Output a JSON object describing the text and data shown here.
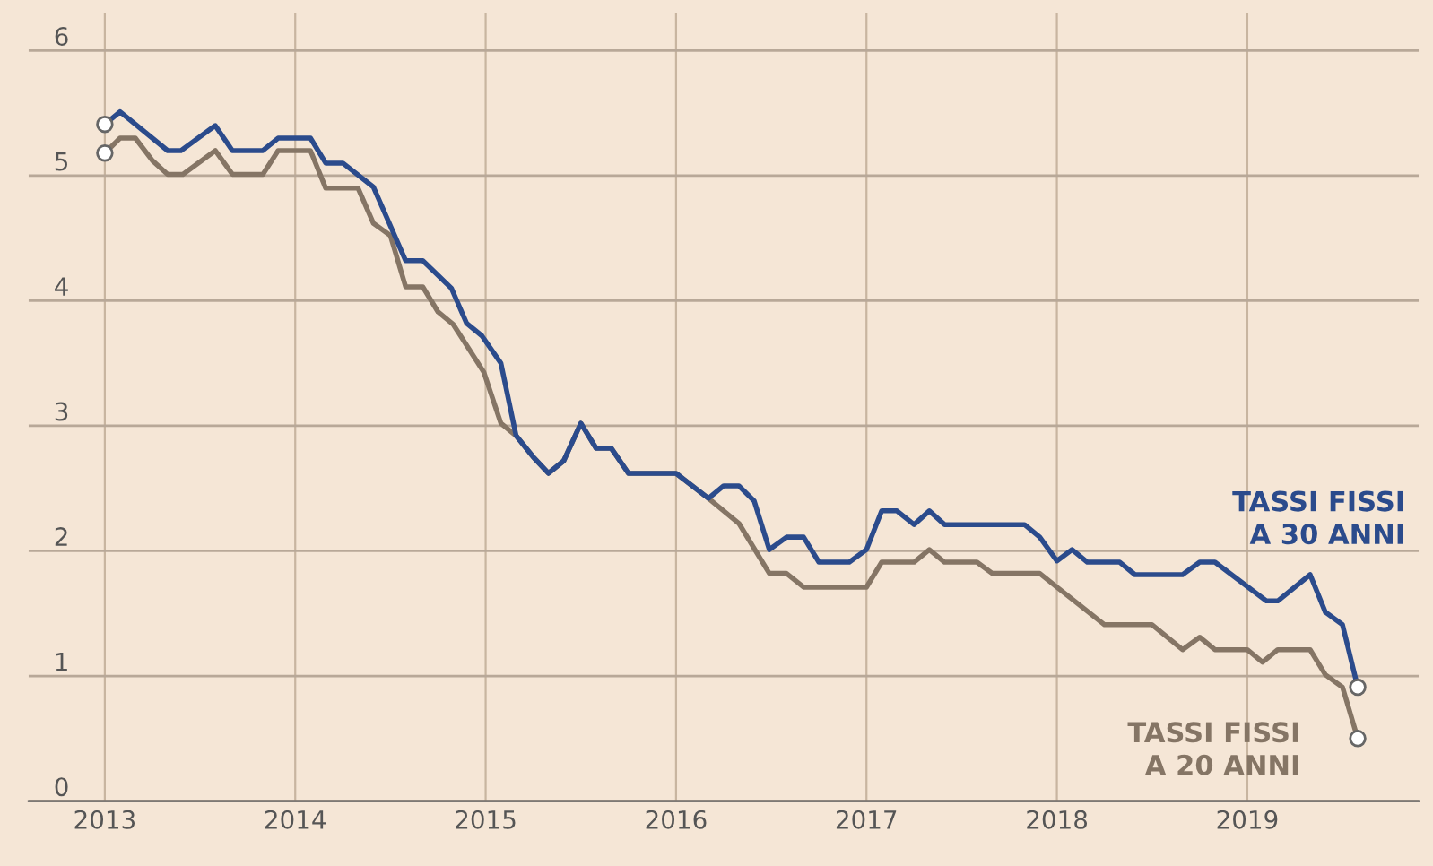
{
  "chart_data": {
    "type": "line",
    "x": [
      2013.0,
      2013.08,
      2013.33,
      2013.4,
      2013.58,
      2013.67,
      2013.83,
      2013.91,
      2014.08,
      2014.16,
      2014.25,
      2014.41,
      2014.58,
      2014.67,
      2014.82,
      2014.9,
      2014.98,
      2015.08,
      2015.16,
      2015.25,
      2015.33,
      2015.41,
      2015.5,
      2015.58,
      2015.66,
      2015.75,
      2016.0,
      2016.17,
      2016.25,
      2016.33,
      2016.41,
      2016.49,
      2016.58,
      2016.67,
      2016.75,
      2016.91,
      2017.0,
      2017.08,
      2017.16,
      2017.25,
      2017.33,
      2017.41,
      2017.83,
      2017.91,
      2018.0,
      2018.08,
      2018.16,
      2018.33,
      2018.41,
      2018.66,
      2018.75,
      2018.83,
      2019.1,
      2019.16,
      2019.33,
      2019.41,
      2019.5,
      2019.58
    ],
    "series": [
      {
        "name": "TASSI FISSI\nA 30 ANNI",
        "color": "#2b4b8c",
        "values": [
          5.41,
          5.51,
          5.2,
          5.2,
          5.4,
          5.2,
          5.2,
          5.3,
          5.3,
          5.1,
          5.1,
          4.91,
          4.32,
          4.32,
          4.1,
          3.82,
          3.72,
          3.5,
          2.92,
          2.75,
          2.62,
          2.72,
          3.02,
          2.82,
          2.82,
          2.62,
          2.62,
          2.42,
          2.52,
          2.52,
          2.4,
          2.01,
          2.11,
          2.11,
          1.91,
          1.91,
          2.01,
          2.32,
          2.32,
          2.21,
          2.32,
          2.21,
          2.21,
          2.11,
          1.92,
          2.01,
          1.91,
          1.91,
          1.81,
          1.81,
          1.91,
          1.91,
          1.6,
          1.6,
          1.81,
          1.51,
          1.41,
          0.91
        ]
      },
      {
        "name": "TASSI FISSI\nA 20 ANNI",
        "color": "#857565",
        "x": [
          2013.0,
          2013.08,
          2013.16,
          2013.25,
          2013.33,
          2013.41,
          2013.58,
          2013.67,
          2013.83,
          2013.91,
          2014.08,
          2014.16,
          2014.33,
          2014.41,
          2014.5,
          2014.58,
          2014.67,
          2014.75,
          2014.83,
          2014.99,
          2015.08,
          2015.16,
          2015.25,
          2015.33,
          2015.41,
          2015.5,
          2015.58,
          2015.66,
          2015.75,
          2016.0,
          2016.17,
          2016.33,
          2016.49,
          2016.58,
          2016.67,
          2017.0,
          2017.08,
          2017.25,
          2017.33,
          2017.41,
          2017.58,
          2017.66,
          2017.91,
          2018.0,
          2018.25,
          2018.5,
          2018.66,
          2018.75,
          2018.83,
          2019.0,
          2019.08,
          2019.16,
          2019.33,
          2019.41,
          2019.5,
          2019.58
        ],
        "values": [
          5.18,
          5.3,
          5.3,
          5.12,
          5.01,
          5.01,
          5.2,
          5.01,
          5.01,
          5.2,
          5.2,
          4.9,
          4.9,
          4.62,
          4.52,
          4.11,
          4.11,
          3.91,
          3.81,
          3.43,
          3.02,
          2.92,
          2.75,
          2.62,
          2.72,
          3.02,
          2.82,
          2.82,
          2.62,
          2.62,
          2.42,
          2.22,
          1.82,
          1.82,
          1.71,
          1.71,
          1.91,
          1.91,
          2.01,
          1.91,
          1.91,
          1.82,
          1.82,
          1.71,
          1.41,
          1.41,
          1.21,
          1.31,
          1.21,
          1.21,
          1.11,
          1.21,
          1.21,
          1.01,
          0.91,
          0.5
        ]
      }
    ],
    "xlim": [
      2012.6,
      2019.9
    ],
    "xticks": [
      2013,
      2014,
      2015,
      2016,
      2017,
      2018,
      2019
    ],
    "ylim": [
      0,
      6.3
    ],
    "yticks": [
      0,
      1,
      2,
      3,
      4,
      5,
      6
    ],
    "grid": true,
    "legend": false
  }
}
